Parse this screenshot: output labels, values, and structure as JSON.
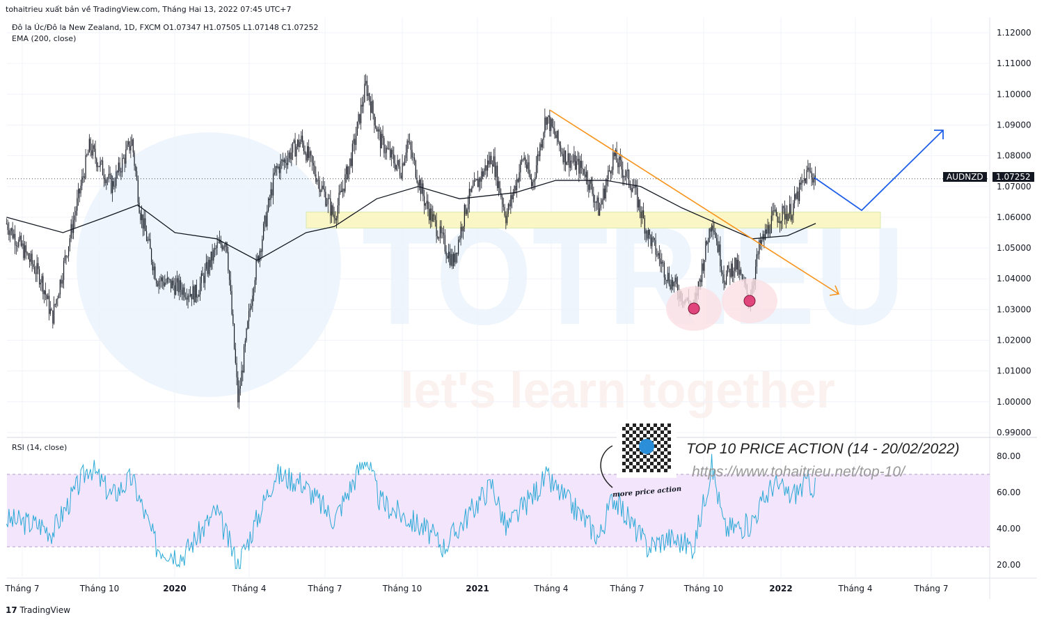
{
  "header": {
    "published": "tohaitrieu xuất bản về TradingView.com, Tháng Hai 13, 2022 07:45 UTC+7",
    "symbol_line": "Đô la Úc/Đô la New Zealand, 1D, FXCM  O1.07347  H1.07505  L1.07148  C1.07252",
    "ema_label": "EMA (200, close)",
    "rsi_label": "RSI (14, close)"
  },
  "price_badge": {
    "symbol": "AUDNZD",
    "value": "1.07252"
  },
  "annotations": {
    "title": "TOP 10 PRICE ACTION (14 - 20/02/2022)",
    "url": "https://www.tohaitrieu.net/top-10/",
    "qr_caption": "more price action"
  },
  "watermark": {
    "logo": "TOTRIEU",
    "slogan": "let's learn together"
  },
  "footer": {
    "brand": "TradingView"
  },
  "colors": {
    "candle": "#131722",
    "ema": "#131722",
    "rsi": "#29a9d6",
    "rsi_band": "#f3e5fc",
    "trendline": "#f7931a",
    "projection": "#1e5ee8",
    "zone": "#fbf6c5",
    "circle": "#e0457b"
  },
  "chart_data": [
    {
      "type": "candlestick",
      "ylim": [
        0.99,
        1.12
      ],
      "yticks": [
        "1.12000",
        "1.11000",
        "1.10000",
        "1.09000",
        "1.08000",
        "1.07000",
        "1.06000",
        "1.05000",
        "1.04000",
        "1.03000",
        "1.02000",
        "1.01000",
        "1.00000",
        "0.99000"
      ],
      "xticks": [
        "Tháng 7",
        "Tháng 10",
        "2020",
        "Tháng 4",
        "Tháng 7",
        "Tháng 10",
        "2021",
        "Tháng 4",
        "Tháng 7",
        "Tháng 10",
        "2022",
        "Tháng 4",
        "Tháng 7"
      ],
      "close": [
        [
          "2019-06-12",
          1.058
        ],
        [
          "2019-07-24",
          1.04
        ],
        [
          "2019-08-06",
          1.027
        ],
        [
          "2019-09-20",
          1.083
        ],
        [
          "2019-10-17",
          1.07
        ],
        [
          "2019-11-10",
          1.085
        ],
        [
          "2019-11-20",
          1.062
        ],
        [
          "2019-12-10",
          1.04
        ],
        [
          "2020-01-26",
          1.035
        ],
        [
          "2020-02-20",
          1.05
        ],
        [
          "2020-03-03",
          1.053
        ],
        [
          "2020-03-17",
          1.0
        ],
        [
          "2020-04-05",
          1.04
        ],
        [
          "2020-05-01",
          1.075
        ],
        [
          "2020-06-01",
          1.085
        ],
        [
          "2020-07-11",
          1.06
        ],
        [
          "2020-08-01",
          1.08
        ],
        [
          "2020-08-18",
          1.103
        ],
        [
          "2020-09-04",
          1.085
        ],
        [
          "2020-09-29",
          1.075
        ],
        [
          "2020-10-07",
          1.085
        ],
        [
          "2020-10-28",
          1.065
        ],
        [
          "2020-12-01",
          1.045
        ],
        [
          "2020-12-18",
          1.065
        ],
        [
          "2021-01-17",
          1.08
        ],
        [
          "2021-02-03",
          1.06
        ],
        [
          "2021-02-24",
          1.08
        ],
        [
          "2021-03-06",
          1.07
        ],
        [
          "2021-03-23",
          1.093
        ],
        [
          "2021-04-14",
          1.08
        ],
        [
          "2021-05-09",
          1.075
        ],
        [
          "2021-05-26",
          1.062
        ],
        [
          "2021-06-12",
          1.08
        ],
        [
          "2021-07-06",
          1.07
        ],
        [
          "2021-07-23",
          1.055
        ],
        [
          "2021-08-18",
          1.04
        ],
        [
          "2021-09-17",
          1.03
        ],
        [
          "2021-10-09",
          1.06
        ],
        [
          "2021-10-24",
          1.04
        ],
        [
          "2021-11-06",
          1.045
        ],
        [
          "2021-11-23",
          1.033
        ],
        [
          "2021-12-05",
          1.05
        ],
        [
          "2021-12-22",
          1.06
        ],
        [
          "2022-01-12",
          1.062
        ],
        [
          "2022-02-02",
          1.075
        ],
        [
          "2022-02-11",
          1.0725
        ]
      ],
      "ema200": [
        [
          "2019-06-12",
          1.06
        ],
        [
          "2019-08-19",
          1.055
        ],
        [
          "2019-10-09",
          1.06
        ],
        [
          "2019-11-17",
          1.064
        ],
        [
          "2020-01-01",
          1.055
        ],
        [
          "2020-02-20",
          1.053
        ],
        [
          "2020-04-09",
          1.046
        ],
        [
          "2020-06-07",
          1.055
        ],
        [
          "2020-07-11",
          1.057
        ],
        [
          "2020-08-31",
          1.066
        ],
        [
          "2020-10-20",
          1.07
        ],
        [
          "2020-12-09",
          1.066
        ],
        [
          "2021-02-14",
          1.068
        ],
        [
          "2021-04-04",
          1.072
        ],
        [
          "2021-06-03",
          1.072
        ],
        [
          "2021-07-15",
          1.07
        ],
        [
          "2021-09-03",
          1.063
        ],
        [
          "2021-10-15",
          1.058
        ],
        [
          "2021-11-27",
          1.053
        ],
        [
          "2022-01-08",
          1.054
        ],
        [
          "2022-02-11",
          1.058
        ]
      ]
    },
    {
      "type": "line",
      "ylim": [
        15,
        85
      ],
      "yticks": [
        "80.00",
        "60.00",
        "40.00",
        "20.00"
      ],
      "bands": [
        30,
        70
      ],
      "rsi": [
        [
          "2019-06-12",
          45
        ],
        [
          "2019-07-24",
          42
        ],
        [
          "2019-08-06",
          38
        ],
        [
          "2019-09-20",
          75
        ],
        [
          "2019-10-17",
          58
        ],
        [
          "2019-11-10",
          68
        ],
        [
          "2019-12-10",
          30
        ],
        [
          "2020-01-10",
          25
        ],
        [
          "2020-02-20",
          50
        ],
        [
          "2020-03-17",
          20
        ],
        [
          "2020-05-01",
          70
        ],
        [
          "2020-06-01",
          66
        ],
        [
          "2020-07-11",
          45
        ],
        [
          "2020-08-18",
          80
        ],
        [
          "2020-09-04",
          55
        ],
        [
          "2020-10-28",
          40
        ],
        [
          "2020-11-20",
          30
        ],
        [
          "2021-01-17",
          65
        ],
        [
          "2021-02-03",
          40
        ],
        [
          "2021-03-23",
          68
        ],
        [
          "2021-05-09",
          45
        ],
        [
          "2021-05-26",
          35
        ],
        [
          "2021-06-12",
          58
        ],
        [
          "2021-07-23",
          30
        ],
        [
          "2021-08-18",
          35
        ],
        [
          "2021-09-17",
          30
        ],
        [
          "2021-10-09",
          75
        ],
        [
          "2021-10-24",
          40
        ],
        [
          "2021-11-23",
          42
        ],
        [
          "2021-12-22",
          65
        ],
        [
          "2022-01-12",
          58
        ],
        [
          "2022-02-02",
          66
        ],
        [
          "2022-02-11",
          62
        ]
      ]
    }
  ]
}
